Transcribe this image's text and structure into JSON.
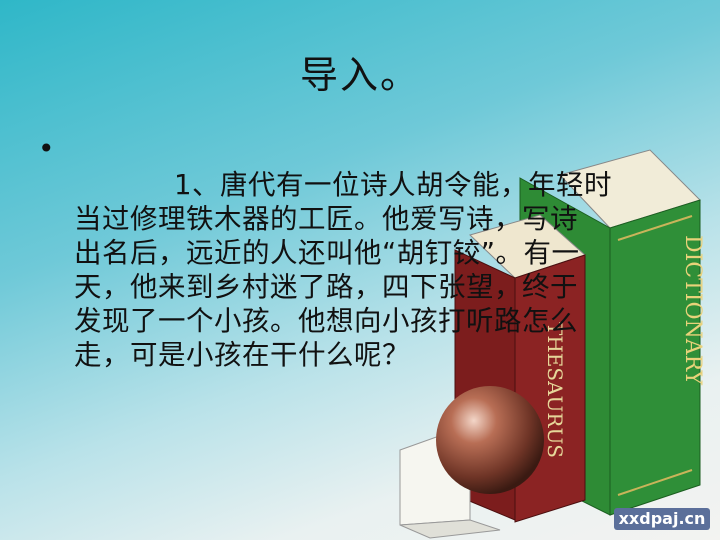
{
  "slide": {
    "title": "导入。",
    "bullet": "•",
    "paragraph_lines": [
      "1、唐代有一位诗人胡令能，年轻时",
      "当过修理铁木器的工匠。他爱写诗，写诗",
      "出名后，远近的人还叫他“胡钉铰”。有一",
      "天，他来到乡村迷了路，四下张望，终于",
      "发现了一个小孩。他想向小孩打听路怎么",
      "走，可是小孩在干什么呢？"
    ],
    "book_spines": {
      "green": "DICTIONARY",
      "red": "THESAURUS"
    },
    "watermark": "xxdpaj.cn"
  },
  "colors": {
    "green_book": "#2e7d32",
    "red_book": "#7a1f1f",
    "sphere": "#8a4a36"
  }
}
